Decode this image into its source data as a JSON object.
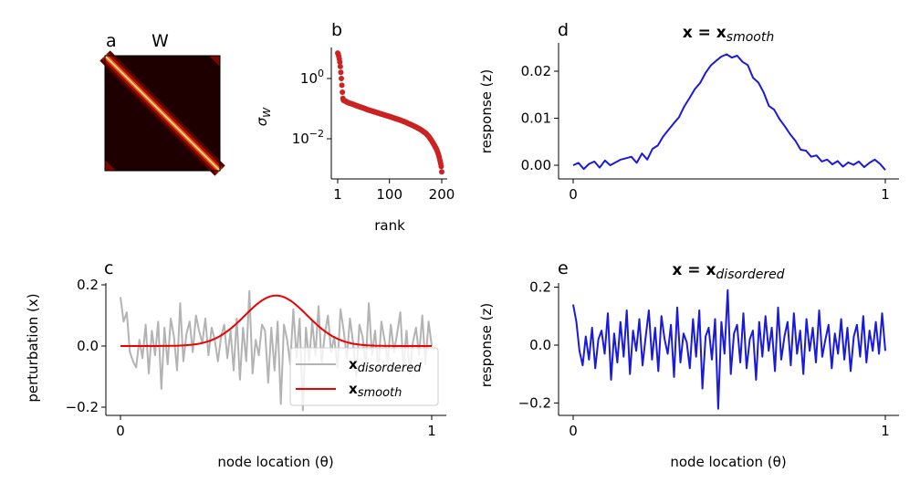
{
  "chart_data": [
    {
      "panel": "a",
      "type": "heatmap",
      "title": "W",
      "colormap": "hot",
      "description_shown": "banded diagonal matrix with wrap-around corners"
    },
    {
      "panel": "b",
      "type": "scatter",
      "xlabel": "rank",
      "ylabel": "σ",
      "ylabel_sub": "W",
      "yscale": "log",
      "color": "#cc2222",
      "xticks": [
        {
          "v": 1,
          "label": "1"
        },
        {
          "v": 100,
          "label": "100"
        },
        {
          "v": 200,
          "label": "200"
        }
      ],
      "yticks": [
        {
          "v": 1,
          "base": "10",
          "exp": "0"
        },
        {
          "v": 0.01,
          "base": "10",
          "exp": "−2"
        }
      ],
      "points": [
        [
          1,
          7
        ],
        [
          2,
          6.5
        ],
        [
          3,
          5.5
        ],
        [
          4,
          4.5
        ],
        [
          5,
          3.5
        ],
        [
          6,
          2.5
        ],
        [
          7,
          1.6
        ],
        [
          8,
          1.0
        ],
        [
          9,
          0.6
        ],
        [
          10,
          0.35
        ],
        [
          11,
          0.22
        ],
        [
          12,
          0.19
        ],
        [
          15,
          0.18
        ],
        [
          20,
          0.16
        ],
        [
          30,
          0.14
        ],
        [
          40,
          0.12
        ],
        [
          50,
          0.105
        ],
        [
          60,
          0.09
        ],
        [
          70,
          0.08
        ],
        [
          80,
          0.07
        ],
        [
          90,
          0.062
        ],
        [
          100,
          0.055
        ],
        [
          110,
          0.048
        ],
        [
          120,
          0.042
        ],
        [
          130,
          0.036
        ],
        [
          140,
          0.03
        ],
        [
          150,
          0.025
        ],
        [
          160,
          0.02
        ],
        [
          170,
          0.015
        ],
        [
          175,
          0.012
        ],
        [
          180,
          0.009
        ],
        [
          185,
          0.0065
        ],
        [
          190,
          0.0045
        ],
        [
          193,
          0.0033
        ],
        [
          195,
          0.0025
        ],
        [
          197,
          0.0018
        ],
        [
          198,
          0.0015
        ],
        [
          199,
          0.0012
        ],
        [
          200,
          0.0008
        ]
      ]
    },
    {
      "panel": "c",
      "type": "line",
      "xlabel": "node location (θ)",
      "ylabel": "perturbation (x)",
      "xlim": [
        0,
        1
      ],
      "ylim": [
        -0.22,
        0.2
      ],
      "xticks": [
        {
          "v": 0,
          "label": "0"
        },
        {
          "v": 1,
          "label": "1"
        }
      ],
      "yticks": [
        {
          "v": 0.2,
          "label": "0.2"
        },
        {
          "v": 0,
          "label": "0.0"
        },
        {
          "v": -0.2,
          "label": "−0.2"
        }
      ],
      "legend": {
        "placement": "lower-right"
      },
      "series": [
        {
          "name": "x",
          "name_sub": "disordered",
          "color": "#b3b3b3",
          "values": [
            0.16,
            0.08,
            0.11,
            -0.02,
            -0.05,
            -0.07,
            0.02,
            -0.04,
            0.07,
            -0.09,
            0.05,
            -0.03,
            0.08,
            -0.14,
            0.06,
            -0.06,
            0.09,
            0.03,
            -0.08,
            0.14,
            -0.05,
            0.04,
            0.08,
            -0.02,
            0.1,
            0.05,
            0.01,
            0.09,
            -0.03,
            0.06,
            0.02,
            -0.05,
            0.03,
            0.07,
            -0.04,
            0.05,
            -0.08,
            0.09,
            -0.11,
            0.06,
            -0.05,
            0.18,
            -0.09,
            0.02,
            -0.03,
            0.07,
            0.05,
            -0.12,
            0.06,
            -0.08,
            0.08,
            -0.19,
            0.07,
            0.02,
            -0.06,
            0.12,
            -0.04,
            0.09,
            -0.21,
            0.06,
            -0.05,
            0.08,
            -0.03,
            0.13,
            -0.06,
            0.04,
            0.1,
            -0.02,
            0.03,
            -0.07,
            0.12,
            0.05,
            -0.04,
            0.09,
            0.01,
            -0.1,
            0.07,
            0.03,
            -0.06,
            0.14,
            -0.03,
            0.05,
            -0.08,
            0.08,
            0.02,
            -0.05,
            0.07,
            -0.02,
            0.04,
            0.11,
            -0.07,
            0.05,
            -0.09,
            0.01,
            0.06,
            -0.03,
            0.1,
            -0.06,
            0.08,
            0.0
          ]
        },
        {
          "name": "x",
          "name_sub": "smooth",
          "color": "#ee0000",
          "shape": "gaussian",
          "peak": 0.165,
          "center": 0.5,
          "sigma": 0.1
        }
      ]
    },
    {
      "panel": "d",
      "type": "line",
      "title": "x = x",
      "title_sub": "smooth",
      "ylabel": "response (z)",
      "xlim": [
        0,
        1
      ],
      "color": "#1a1adb",
      "xticks": [
        {
          "v": 0,
          "label": "0"
        },
        {
          "v": 1,
          "label": "1"
        }
      ],
      "yticks": [
        {
          "v": 0.02,
          "label": "0.02"
        },
        {
          "v": 0.01,
          "label": "0.01"
        },
        {
          "v": 0,
          "label": "0.00"
        }
      ],
      "values": [
        0.0,
        0.0005,
        -0.0008,
        0.0003,
        0.0008,
        -0.0005,
        0.001,
        0.0,
        0.0006,
        0.0012,
        0.0015,
        0.0018,
        0.0005,
        0.0025,
        0.0012,
        0.0035,
        0.0042,
        0.0061,
        0.0075,
        0.0089,
        0.0102,
        0.0125,
        0.0143,
        0.0162,
        0.0175,
        0.0196,
        0.0212,
        0.0222,
        0.0231,
        0.0236,
        0.0229,
        0.0233,
        0.022,
        0.0213,
        0.0186,
        0.0176,
        0.0155,
        0.0126,
        0.0118,
        0.0098,
        0.0083,
        0.0066,
        0.0052,
        0.0033,
        0.0031,
        0.0018,
        0.0021,
        0.0008,
        0.0012,
        0.0002,
        0.0009,
        -0.0003,
        0.0006,
        0.0001,
        0.0008,
        -0.0004,
        0.0005,
        0.0012,
        0.0003,
        -0.001
      ]
    },
    {
      "panel": "e",
      "type": "line",
      "title": "x = x",
      "title_sub": "disordered",
      "xlabel": "node location (θ)",
      "ylabel": "response (z)",
      "xlim": [
        0,
        1
      ],
      "color": "#1a1adb",
      "xticks": [
        {
          "v": 0,
          "label": "0"
        },
        {
          "v": 1,
          "label": "1"
        }
      ],
      "yticks": [
        {
          "v": 0.2,
          "label": "0.2"
        },
        {
          "v": 0,
          "label": "0.0"
        },
        {
          "v": -0.2,
          "label": "−0.2"
        }
      ],
      "values": [
        0.14,
        0.08,
        -0.02,
        -0.07,
        0.03,
        -0.05,
        0.06,
        -0.08,
        0.02,
        0.05,
        -0.03,
        0.11,
        -0.12,
        0.04,
        -0.06,
        0.08,
        -0.04,
        0.12,
        -0.1,
        0.05,
        -0.02,
        0.09,
        -0.07,
        0.03,
        0.12,
        -0.05,
        0.06,
        -0.09,
        0.1,
        0.02,
        -0.03,
        0.07,
        -0.11,
        0.13,
        -0.06,
        0.04,
        0.01,
        -0.08,
        0.09,
        -0.04,
        0.12,
        -0.15,
        0.03,
        0.06,
        -0.05,
        0.09,
        -0.22,
        0.08,
        -0.03,
        0.19,
        -0.1,
        0.04,
        0.07,
        -0.06,
        0.11,
        -0.08,
        0.02,
        0.05,
        -0.12,
        0.08,
        -0.04,
        0.1,
        -0.02,
        0.06,
        -0.09,
        0.13,
        -0.05,
        0.03,
        0.08,
        -0.07,
        0.11,
        -0.03,
        0.05,
        -0.1,
        0.09,
        -0.02,
        0.06,
        -0.06,
        0.12,
        -0.04,
        0.02,
        0.07,
        -0.08,
        0.04,
        -0.03,
        0.09,
        -0.05,
        0.06,
        -0.09,
        0.03,
        0.07,
        -0.04,
        0.1,
        -0.06,
        0.05,
        -0.02,
        0.08,
        -0.03,
        0.11,
        -0.02
      ]
    }
  ]
}
